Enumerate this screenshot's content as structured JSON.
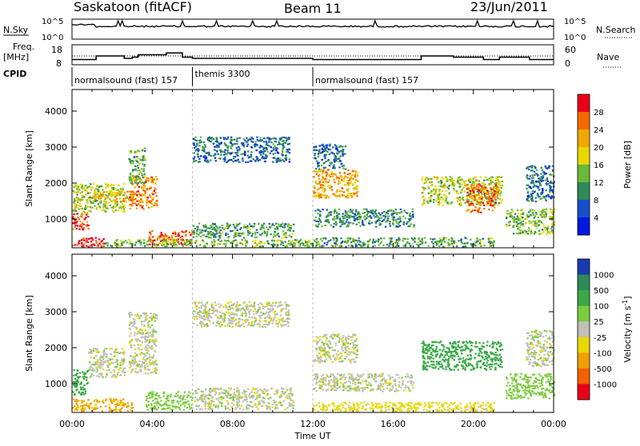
{
  "header": {
    "station": "Saskatoon (fitACF)",
    "beam": "Beam 11",
    "date": "23/Jun/2011"
  },
  "nsky_panel": {
    "left_label": "N.Sky",
    "right_label": "N.Search",
    "left_ticks": [
      "10^5",
      "10^0"
    ],
    "right_ticks": [
      "10^5",
      "10^0"
    ]
  },
  "freq_panel": {
    "left_label_line1": "Freq.",
    "left_label_line2": "[MHz]",
    "right_label": "Nave",
    "left_ticks": [
      "18",
      "8"
    ],
    "right_ticks": [
      "60",
      "0"
    ],
    "freq_steps": [
      {
        "t": 0.0,
        "v": 11
      },
      {
        "t": 1.2,
        "v": 14
      },
      {
        "t": 2.6,
        "v": 12
      },
      {
        "t": 3.0,
        "v": 13
      },
      {
        "t": 3.3,
        "v": 15
      },
      {
        "t": 4.7,
        "v": 16.5
      },
      {
        "t": 5.5,
        "v": 13
      },
      {
        "t": 6.0,
        "v": 12
      },
      {
        "t": 12.0,
        "v": 11
      },
      {
        "t": 17.4,
        "v": 14
      },
      {
        "t": 19.0,
        "v": 13
      },
      {
        "t": 20.5,
        "v": 11
      },
      {
        "t": 21.3,
        "v": 13
      },
      {
        "t": 22.8,
        "v": 11
      },
      {
        "t": 23.6,
        "v": 11
      },
      {
        "t": 24.0,
        "v": 11
      }
    ]
  },
  "cpid": {
    "label": "CPID",
    "segments": [
      {
        "start": 0.0,
        "end": 6.0,
        "name": "normalsound (fast) 157"
      },
      {
        "start": 6.0,
        "end": 12.0,
        "name": "themis 3300"
      },
      {
        "start": 12.0,
        "end": 24.0,
        "name": "normalsound (fast) 157"
      }
    ]
  },
  "chart_data": [
    {
      "type": "heatmap",
      "quantity": "power",
      "ylabel": "Slant Range [km]",
      "xlabel": "",
      "xlim": [
        0,
        24
      ],
      "ylim": [
        200,
        4600
      ],
      "yticks": [
        "1000",
        "2000",
        "3000",
        "4000"
      ],
      "colorbar": {
        "label": "Power [dB]",
        "ticks": [
          "28",
          "24",
          "20",
          "16",
          "12",
          "8",
          "4"
        ],
        "colors": [
          "#e8001a",
          "#f46a00",
          "#f0a800",
          "#e8d800",
          "#6ab83a",
          "#2e8a57",
          "#1650c8",
          "#0018e0"
        ]
      },
      "blobs": [
        {
          "t0": 0.0,
          "t1": 1.6,
          "r0": 250,
          "r1": 500,
          "power": 28
        },
        {
          "t0": 0.0,
          "t1": 0.8,
          "r0": 700,
          "r1": 1200,
          "power": 26
        },
        {
          "t0": 0.0,
          "t1": 2.6,
          "r0": 1200,
          "r1": 2000,
          "power": 14
        },
        {
          "t0": 1.0,
          "t1": 3.0,
          "r0": 1500,
          "r1": 1800,
          "power": 18
        },
        {
          "t0": 2.8,
          "t1": 4.2,
          "r0": 1300,
          "r1": 2200,
          "power": 22
        },
        {
          "t0": 2.8,
          "t1": 3.6,
          "r0": 2000,
          "r1": 3000,
          "power": 10
        },
        {
          "t0": 3.8,
          "t1": 6.0,
          "r0": 300,
          "r1": 700,
          "power": 24
        },
        {
          "t0": 1.6,
          "t1": 12.0,
          "r0": 250,
          "r1": 450,
          "power": 12
        },
        {
          "t0": 6.0,
          "t1": 11.0,
          "r0": 500,
          "r1": 900,
          "power": 10
        },
        {
          "t0": 6.0,
          "t1": 10.8,
          "r0": 2600,
          "r1": 3300,
          "power": 6
        },
        {
          "t0": 12.0,
          "t1": 14.2,
          "r0": 1600,
          "r1": 2400,
          "power": 20
        },
        {
          "t0": 12.0,
          "t1": 13.6,
          "r0": 2400,
          "r1": 3100,
          "power": 6
        },
        {
          "t0": 12.0,
          "t1": 17.0,
          "r0": 800,
          "r1": 1300,
          "power": 8
        },
        {
          "t0": 12.0,
          "t1": 21.0,
          "r0": 250,
          "r1": 500,
          "power": 10
        },
        {
          "t0": 17.4,
          "t1": 21.4,
          "r0": 1400,
          "r1": 2200,
          "power": 14
        },
        {
          "t0": 19.6,
          "t1": 21.2,
          "r0": 1200,
          "r1": 2000,
          "power": 24
        },
        {
          "t0": 21.6,
          "t1": 24.0,
          "r0": 600,
          "r1": 1300,
          "power": 12
        },
        {
          "t0": 22.6,
          "t1": 24.0,
          "r0": 1500,
          "r1": 2500,
          "power": 6
        }
      ]
    },
    {
      "type": "heatmap",
      "quantity": "velocity",
      "ylabel": "Slant Range [km]",
      "xlabel": "Time UT",
      "xlim": [
        0,
        24
      ],
      "ylim": [
        200,
        4600
      ],
      "xticks": [
        "00:00",
        "04:00",
        "08:00",
        "12:00",
        "16:00",
        "20:00",
        "00:00"
      ],
      "yticks": [
        "1000",
        "2000",
        "3000",
        "4000"
      ],
      "colorbar": {
        "label": "Velocity [m s",
        "label_sup": "-1",
        "label_close": "]",
        "ticks": [
          "1000",
          "500",
          "100",
          "25",
          "-25",
          "-100",
          "-500",
          "-1000"
        ],
        "colors": [
          "#1a3ab0",
          "#2e8a57",
          "#3aa846",
          "#7ccc3e",
          "#c0c0b8",
          "#e8d800",
          "#f0a000",
          "#f46000",
          "#e8001a"
        ]
      },
      "blobs": [
        {
          "t0": 0.0,
          "t1": 3.0,
          "r0": 250,
          "r1": 600,
          "vel": -120
        },
        {
          "t0": 0.0,
          "t1": 0.8,
          "r0": 700,
          "r1": 1400,
          "vel": 300
        },
        {
          "t0": 0.8,
          "t1": 2.6,
          "r0": 1200,
          "r1": 2000,
          "vel": 0
        },
        {
          "t0": 2.8,
          "t1": 4.2,
          "r0": 1300,
          "r1": 3000,
          "vel": 0
        },
        {
          "t0": 3.6,
          "t1": 6.0,
          "r0": 300,
          "r1": 800,
          "vel": 60
        },
        {
          "t0": 6.0,
          "t1": 11.0,
          "r0": 300,
          "r1": 900,
          "vel": 0
        },
        {
          "t0": 6.0,
          "t1": 10.8,
          "r0": 2600,
          "r1": 3300,
          "vel": 0
        },
        {
          "t0": 12.0,
          "t1": 14.2,
          "r0": 1600,
          "r1": 2400,
          "vel": 0
        },
        {
          "t0": 12.0,
          "t1": 17.0,
          "r0": 800,
          "r1": 1300,
          "vel": 0
        },
        {
          "t0": 12.0,
          "t1": 21.0,
          "r0": 250,
          "r1": 500,
          "vel": -60
        },
        {
          "t0": 17.4,
          "t1": 21.4,
          "r0": 1400,
          "r1": 2200,
          "vel": 400
        },
        {
          "t0": 21.6,
          "t1": 24.0,
          "r0": 600,
          "r1": 1300,
          "vel": 60
        },
        {
          "t0": 22.6,
          "t1": 24.0,
          "r0": 1500,
          "r1": 2500,
          "vel": 0
        }
      ]
    }
  ]
}
